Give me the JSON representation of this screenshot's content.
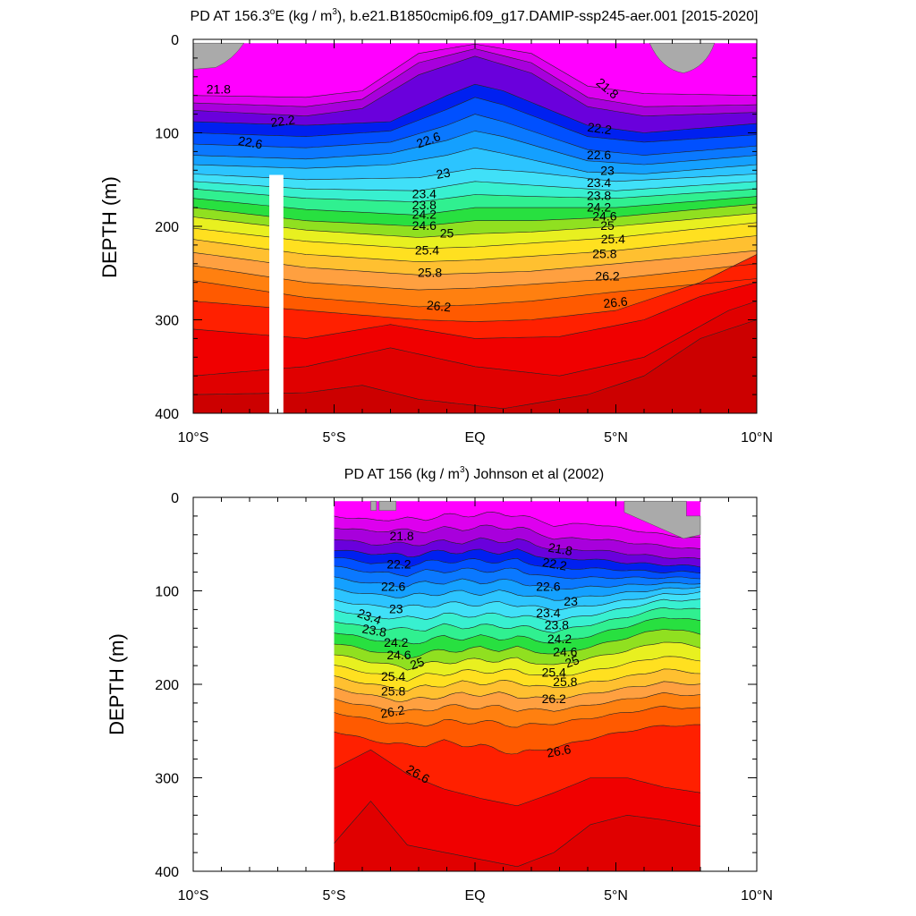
{
  "chart_data": [
    {
      "type": "contour",
      "title_prefix": "PD AT 156.3",
      "title_degree": "o",
      "title_mid": "E (kg / m",
      "title_exp": "3",
      "title_suffix": "), b.e21.B1850cmip6.f09_g17.DAMIP-ssp245-aer.001 [2015-2020]",
      "ylabel": "DEPTH (m)",
      "xlim": [
        -10,
        10
      ],
      "ylim": [
        400,
        0
      ],
      "y_ticks": [
        "0",
        "100",
        "200",
        "300",
        "400"
      ],
      "x_ticks": [
        "10°S",
        "5°S",
        "EQ",
        "5°N",
        "10°N"
      ],
      "contour_levels": [
        21.8,
        22.2,
        22.6,
        23,
        23.4,
        23.8,
        24.2,
        24.6,
        25,
        25.4,
        25.8,
        26.2,
        26.6
      ],
      "contour_labels": [
        "21.8",
        "22.2",
        "22.6",
        "22.6",
        "23",
        "23.4",
        "23.8",
        "24.2",
        "24.6",
        "25",
        "25.4",
        "25.8",
        "26.2",
        "21.8",
        "22.2",
        "22.6",
        "23",
        "23.4",
        "23.8",
        "24.2",
        "24.6",
        "25",
        "25.4",
        "25.8",
        "26.2",
        "26.6"
      ],
      "data_x_range": [
        -10,
        10
      ],
      "missing_column_x": [
        -7.3,
        -6.8
      ],
      "missing_column_depth": [
        145,
        400
      ],
      "land_mask": "grey patches at surface near 9.5°S and 7–8.5°N"
    },
    {
      "type": "contour",
      "title_prefix": "PD AT 156 (kg / m",
      "title_exp": "3",
      "title_suffix": ") Johnson et al (2002)",
      "ylabel": "DEPTH (m)",
      "xlim": [
        -10,
        10
      ],
      "ylim": [
        400,
        0
      ],
      "y_ticks": [
        "0",
        "100",
        "200",
        "300",
        "400"
      ],
      "x_ticks": [
        "10°S",
        "5°S",
        "EQ",
        "5°N",
        "10°N"
      ],
      "contour_levels": [
        21.8,
        22.2,
        22.6,
        23,
        23.4,
        23.8,
        24.2,
        24.6,
        25,
        25.4,
        25.8,
        26.2,
        26.6
      ],
      "contour_labels": [
        "21.8",
        "22.2",
        "22.6",
        "23",
        "23.4",
        "23.8",
        "24.2",
        "24.6",
        "25",
        "25.4",
        "25.8",
        "26.2",
        "26.6",
        "21.8",
        "22.2",
        "22.6",
        "23",
        "23.4",
        "23.8",
        "24.2",
        "24.6",
        "25",
        "25.4",
        "25.8",
        "26.2",
        "26.6"
      ],
      "data_x_range": [
        -5,
        8
      ],
      "land_mask": "grey patches at surface near 3.6°S and 5.3–8°N"
    }
  ]
}
